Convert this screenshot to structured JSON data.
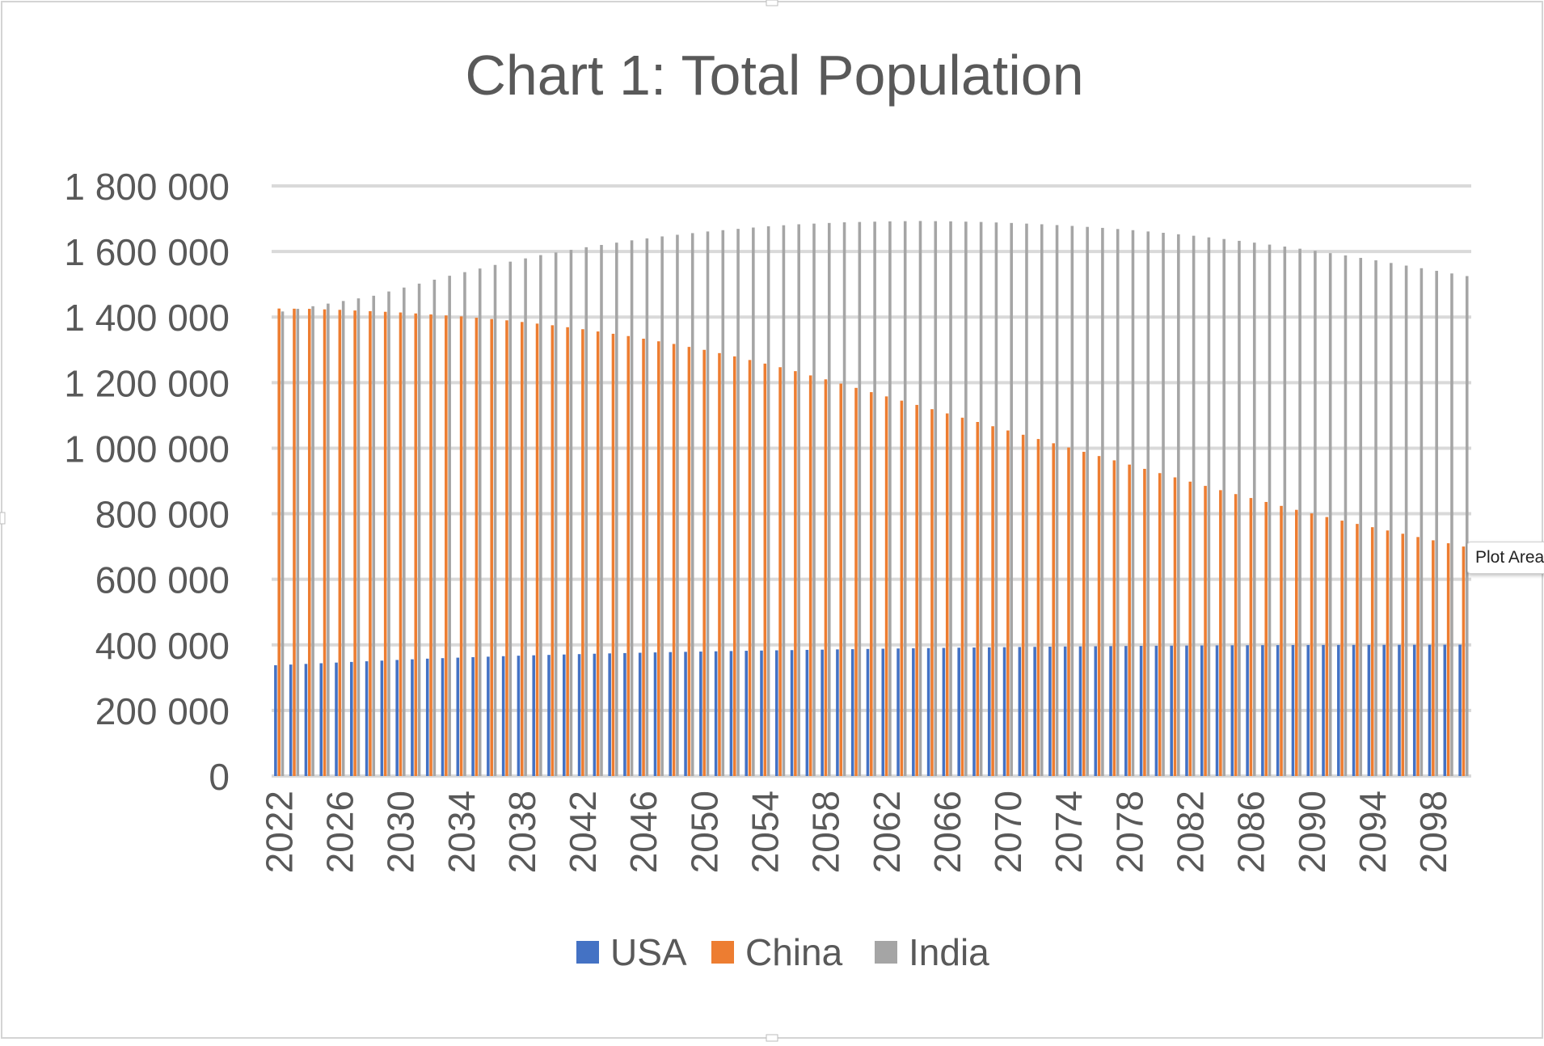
{
  "colors": {
    "USA": "#4472C4",
    "China": "#ED7D31",
    "India": "#A5A5A5",
    "grid": "#D9D9D9",
    "text": "#595959"
  },
  "tooltip": "Plot Area",
  "chart_data": {
    "type": "bar",
    "title": "Chart 1: Total Population",
    "xlabel": "",
    "ylabel": "",
    "ylim": [
      0,
      1800000
    ],
    "yticks": [
      "0",
      "200 000",
      "400 000",
      "600 000",
      "800 000",
      "1 000 000",
      "1 200 000",
      "1 400 000",
      "1 600 000",
      "1 800 000"
    ],
    "categories": [
      2022,
      2023,
      2024,
      2025,
      2026,
      2027,
      2028,
      2029,
      2030,
      2031,
      2032,
      2033,
      2034,
      2035,
      2036,
      2037,
      2038,
      2039,
      2040,
      2041,
      2042,
      2043,
      2044,
      2045,
      2046,
      2047,
      2048,
      2049,
      2050,
      2051,
      2052,
      2053,
      2054,
      2055,
      2056,
      2057,
      2058,
      2059,
      2060,
      2061,
      2062,
      2063,
      2064,
      2065,
      2066,
      2067,
      2068,
      2069,
      2070,
      2071,
      2072,
      2073,
      2074,
      2075,
      2076,
      2077,
      2078,
      2079,
      2080,
      2081,
      2082,
      2083,
      2084,
      2085,
      2086,
      2087,
      2088,
      2089,
      2090,
      2091,
      2092,
      2093,
      2094,
      2095,
      2096,
      2097,
      2098,
      2099,
      2100
    ],
    "xtick_labels": [
      "2022",
      "2026",
      "2030",
      "2034",
      "2038",
      "2042",
      "2046",
      "2050",
      "2054",
      "2058",
      "2062",
      "2066",
      "2070",
      "2074",
      "2078",
      "2082",
      "2086",
      "2090",
      "2094",
      "2098"
    ],
    "legend": [
      "USA",
      "China",
      "India"
    ],
    "legend_position": "bottom",
    "grid": true,
    "series": [
      {
        "name": "USA",
        "values": [
          338000,
          340000,
          342000,
          344000,
          346000,
          348000,
          350000,
          352000,
          354000,
          356000,
          358000,
          359500,
          361000,
          362500,
          364000,
          365500,
          367000,
          368200,
          369400,
          370600,
          371800,
          373000,
          374000,
          375000,
          376000,
          377000,
          378000,
          378800,
          379600,
          380400,
          381200,
          382000,
          382700,
          383400,
          384100,
          384800,
          385500,
          386200,
          386900,
          387600,
          388300,
          389000,
          389600,
          390200,
          390800,
          391400,
          392000,
          392500,
          393000,
          393500,
          394000,
          394500,
          395000,
          395400,
          395800,
          396200,
          396600,
          397000,
          397300,
          397600,
          397900,
          398200,
          398500,
          398700,
          398900,
          399100,
          399300,
          399500,
          399600,
          399700,
          399800,
          399900,
          400000,
          400100,
          400200,
          400300,
          400400,
          400500,
          400600
        ]
      },
      {
        "name": "China",
        "values": [
          1426000,
          1425500,
          1425000,
          1423500,
          1422000,
          1420000,
          1418000,
          1416000,
          1414000,
          1411000,
          1408000,
          1405000,
          1402000,
          1398000,
          1394000,
          1390000,
          1385000,
          1380000,
          1375000,
          1369000,
          1363000,
          1356000,
          1349000,
          1342000,
          1334000,
          1326000,
          1318000,
          1309000,
          1300000,
          1290000,
          1280000,
          1269000,
          1258000,
          1247000,
          1235000,
          1222000,
          1210000,
          1197000,
          1184000,
          1171000,
          1158000,
          1145000,
          1132000,
          1119000,
          1106000,
          1093000,
          1080000,
          1067000,
          1054000,
          1041000,
          1028000,
          1015000,
          1002000,
          989000,
          976000,
          963000,
          950000,
          937000,
          924000,
          911000,
          898000,
          885000,
          872000,
          860000,
          848000,
          836000,
          824000,
          812000,
          801000,
          790000,
          779000,
          769000,
          759000,
          749000,
          739000,
          729000,
          719000,
          710000,
          700000
        ]
      },
      {
        "name": "India",
        "values": [
          1417000,
          1425000,
          1433000,
          1441000,
          1449000,
          1457000,
          1465000,
          1478000,
          1490000,
          1502000,
          1514000,
          1526000,
          1537000,
          1548000,
          1559000,
          1569000,
          1579000,
          1589000,
          1597000,
          1605000,
          1613000,
          1620000,
          1627000,
          1634000,
          1640000,
          1646000,
          1651000,
          1656000,
          1661000,
          1665000,
          1669000,
          1673000,
          1677000,
          1680000,
          1683000,
          1685000,
          1687000,
          1689000,
          1690000,
          1691000,
          1692000,
          1692500,
          1693000,
          1692500,
          1692000,
          1691000,
          1690000,
          1688500,
          1687000,
          1685000,
          1683000,
          1680500,
          1678000,
          1675000,
          1672000,
          1668500,
          1665000,
          1661000,
          1657000,
          1652500,
          1648000,
          1643000,
          1638000,
          1632500,
          1627000,
          1621000,
          1615000,
          1608500,
          1602000,
          1595000,
          1588000,
          1580500,
          1573000,
          1565000,
          1557000,
          1549000,
          1541000,
          1533000,
          1525000
        ]
      }
    ]
  }
}
